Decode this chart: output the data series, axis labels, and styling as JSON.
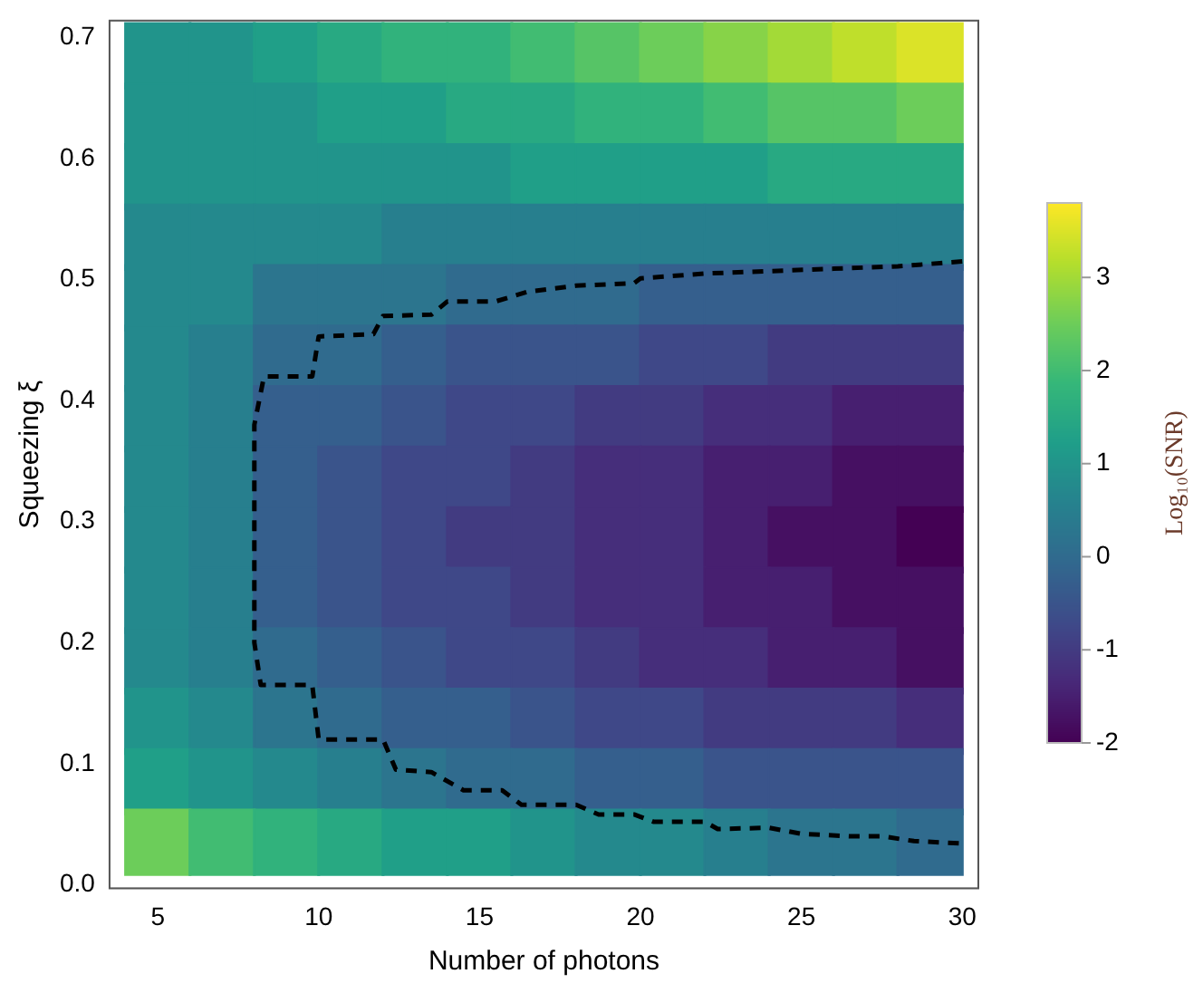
{
  "chart_data": {
    "type": "scatter",
    "xlabel": "Number of photons",
    "ylabel": "Squeezing ξ",
    "clabel": "Log₁₀(SNR)",
    "clim": [
      -2,
      3.8
    ],
    "cticks": [
      -2,
      -1,
      0,
      1,
      2,
      3
    ],
    "xlim": [
      3.5,
      30.5
    ],
    "xticks": [
      5,
      10,
      15,
      20,
      25,
      30
    ],
    "ylim": [
      -0.003,
      0.714
    ],
    "yticks": [
      {
        "value": 0,
        "label": "0.0"
      },
      {
        "value": 0.1,
        "label": "0.1"
      },
      {
        "value": 0.2,
        "label": "0.2"
      },
      {
        "value": 0.3,
        "label": "0.3"
      },
      {
        "value": 0.4,
        "label": "0.4"
      },
      {
        "value": 0.5,
        "label": "0.5"
      },
      {
        "value": 0.6,
        "label": "0.6"
      },
      {
        "value": 0.7,
        "label": "0.7"
      }
    ],
    "series": [
      {
        "marker": "square",
        "x": [
          5,
          7,
          9,
          11,
          13,
          15,
          17,
          19,
          21,
          23,
          25,
          27,
          29,
          5,
          7,
          9,
          11,
          13,
          15,
          17,
          19,
          21,
          23,
          25,
          27,
          29,
          5,
          7,
          9,
          11,
          13,
          15,
          17,
          19,
          21,
          23,
          25,
          27,
          29,
          5,
          7,
          9,
          11,
          13,
          15,
          17,
          19,
          21,
          23,
          25,
          27,
          29,
          5,
          7,
          9,
          11,
          13,
          15,
          17,
          19,
          21,
          23,
          25,
          27,
          29,
          5,
          7,
          9,
          11,
          13,
          15,
          17,
          19,
          21,
          23,
          25,
          27,
          29,
          5,
          7,
          9,
          11,
          13,
          15,
          17,
          19,
          21,
          23,
          25,
          27,
          29,
          5,
          7,
          9,
          11,
          13,
          15,
          17,
          19,
          21,
          23,
          25,
          27,
          29,
          5,
          7,
          9,
          11,
          13,
          15,
          17,
          19,
          21,
          23,
          25,
          27,
          29,
          5,
          7,
          9,
          11,
          13,
          15,
          17,
          19,
          21,
          23,
          25,
          27,
          29,
          5,
          7,
          9,
          11,
          13,
          15,
          17,
          19,
          21,
          23,
          25,
          27,
          29,
          5,
          7,
          9,
          11,
          13,
          15,
          17,
          19,
          21,
          23,
          25,
          27,
          29,
          5,
          7,
          9,
          11,
          13,
          15,
          17,
          19,
          21,
          23,
          25,
          27,
          29,
          5,
          7,
          9,
          11,
          13,
          15,
          17,
          19,
          21,
          23,
          25,
          27,
          29
        ],
        "values": [
          0.685,
          0.685,
          0.685,
          0.685,
          0.685,
          0.685,
          0.685,
          0.685,
          0.685,
          0.685,
          0.685,
          0.685,
          0.685,
          0.635,
          0.635,
          0.635,
          0.635,
          0.635,
          0.635,
          0.635,
          0.635,
          0.635,
          0.635,
          0.635,
          0.635,
          0.635,
          0.585,
          0.585,
          0.585,
          0.585,
          0.585,
          0.585,
          0.585,
          0.585,
          0.585,
          0.585,
          0.585,
          0.585,
          0.585,
          0.535,
          0.535,
          0.535,
          0.535,
          0.535,
          0.535,
          0.535,
          0.535,
          0.535,
          0.535,
          0.535,
          0.535,
          0.535,
          0.485,
          0.485,
          0.485,
          0.485,
          0.485,
          0.485,
          0.485,
          0.485,
          0.485,
          0.485,
          0.485,
          0.485,
          0.485,
          0.435,
          0.435,
          0.435,
          0.435,
          0.435,
          0.435,
          0.435,
          0.435,
          0.435,
          0.435,
          0.435,
          0.435,
          0.435,
          0.385,
          0.385,
          0.385,
          0.385,
          0.385,
          0.385,
          0.385,
          0.385,
          0.385,
          0.385,
          0.385,
          0.385,
          0.385,
          0.335,
          0.335,
          0.335,
          0.335,
          0.335,
          0.335,
          0.335,
          0.335,
          0.335,
          0.335,
          0.335,
          0.335,
          0.335,
          0.285,
          0.285,
          0.285,
          0.285,
          0.285,
          0.285,
          0.285,
          0.285,
          0.285,
          0.285,
          0.285,
          0.285,
          0.285,
          0.235,
          0.235,
          0.235,
          0.235,
          0.235,
          0.235,
          0.235,
          0.235,
          0.235,
          0.235,
          0.235,
          0.235,
          0.235,
          0.185,
          0.185,
          0.185,
          0.185,
          0.185,
          0.185,
          0.185,
          0.185,
          0.185,
          0.185,
          0.185,
          0.185,
          0.185,
          0.135,
          0.135,
          0.135,
          0.135,
          0.135,
          0.135,
          0.135,
          0.135,
          0.135,
          0.135,
          0.135,
          0.135,
          0.135,
          0.085,
          0.085,
          0.085,
          0.085,
          0.085,
          0.085,
          0.085,
          0.085,
          0.085,
          0.085,
          0.085,
          0.085,
          0.085,
          0.035,
          0.035,
          0.035,
          0.035,
          0.035,
          0.035,
          0.035,
          0.035,
          0.035,
          0.035,
          0.035,
          0.035,
          0.035
        ],
        "cvalues": [
          1.0,
          1.0,
          1.25,
          1.5,
          1.75,
          1.75,
          2.0,
          2.25,
          2.5,
          2.75,
          3.0,
          3.25,
          3.5,
          1.0,
          1.0,
          1.0,
          1.25,
          1.25,
          1.5,
          1.5,
          1.75,
          1.75,
          2.0,
          2.25,
          2.25,
          2.5,
          1.0,
          1.0,
          1.0,
          1.0,
          1.0,
          1.0,
          1.25,
          1.25,
          1.25,
          1.25,
          1.5,
          1.5,
          1.5,
          0.75,
          0.75,
          0.75,
          0.75,
          0.5,
          0.5,
          0.5,
          0.5,
          0.5,
          0.5,
          0.5,
          0.5,
          0.5,
          0.75,
          0.75,
          0.25,
          0.25,
          0.25,
          0,
          0,
          0,
          -0.25,
          -0.25,
          -0.25,
          -0.25,
          -0.25,
          0.75,
          0.5,
          0,
          0,
          -0.25,
          -0.5,
          -0.5,
          -0.5,
          -0.75,
          -0.75,
          -1.0,
          -1.0,
          -1.0,
          0.75,
          0.5,
          -0.25,
          -0.25,
          -0.5,
          -0.75,
          -0.75,
          -1.0,
          -1.0,
          -1.25,
          -1.25,
          -1.5,
          -1.5,
          0.75,
          0.5,
          -0.25,
          -0.5,
          -0.75,
          -0.75,
          -1.0,
          -1.25,
          -1.25,
          -1.5,
          -1.5,
          -1.75,
          -1.75,
          0.75,
          0.5,
          -0.25,
          -0.5,
          -0.75,
          -1.0,
          -1.0,
          -1.25,
          -1.25,
          -1.5,
          -1.75,
          -1.75,
          -2.0,
          0.75,
          0.5,
          -0.25,
          -0.5,
          -0.75,
          -0.75,
          -1.0,
          -1.25,
          -1.25,
          -1.5,
          -1.5,
          -1.75,
          -1.75,
          0.75,
          0.5,
          0,
          -0.25,
          -0.5,
          -0.75,
          -0.75,
          -1.0,
          -1.25,
          -1.25,
          -1.5,
          -1.5,
          -1.75,
          1.0,
          0.75,
          0.25,
          0,
          -0.25,
          -0.25,
          -0.5,
          -0.75,
          -0.75,
          -1.0,
          -1.0,
          -1.0,
          -1.25,
          1.25,
          1.0,
          0.75,
          0.5,
          0.25,
          0,
          0,
          -0.25,
          -0.25,
          -0.5,
          -0.5,
          -0.5,
          -0.5,
          2.5,
          2.0,
          1.75,
          1.5,
          1.25,
          1.25,
          1.0,
          0.75,
          0.75,
          0.5,
          0.25,
          0.25,
          0
        ],
        "colors": [
          "#21948b",
          "#21948b",
          "#209f88",
          "#28a982",
          "#31b27c",
          "#31b27c",
          "#41bc72",
          "#56c466",
          "#6ccd5a",
          "#87d348",
          "#a3da37",
          "#bfdf2b",
          "#dbe328",
          "#21948b",
          "#21948b",
          "#21948b",
          "#209f88",
          "#209f88",
          "#28a982",
          "#28a982",
          "#31b27c",
          "#31b27c",
          "#41bc72",
          "#56c466",
          "#56c466",
          "#6ccd5a",
          "#21948b",
          "#21948b",
          "#21948b",
          "#21948b",
          "#21948b",
          "#21948b",
          "#209f88",
          "#209f88",
          "#209f88",
          "#209f88",
          "#28a982",
          "#28a982",
          "#28a982",
          "#24898d",
          "#24898d",
          "#24898d",
          "#24898d",
          "#277f8e",
          "#277f8e",
          "#277f8e",
          "#277f8e",
          "#277f8e",
          "#277f8e",
          "#277f8e",
          "#277f8e",
          "#277f8e",
          "#24898d",
          "#24898d",
          "#2c758e",
          "#2c758e",
          "#2c758e",
          "#306b8e",
          "#306b8e",
          "#306b8e",
          "#355f8d",
          "#355f8d",
          "#355f8d",
          "#355f8d",
          "#355f8d",
          "#24898d",
          "#277f8e",
          "#306b8e",
          "#306b8e",
          "#355f8d",
          "#3a548b",
          "#3a548b",
          "#3a548b",
          "#3f4888",
          "#3f4888",
          "#423b81",
          "#423b81",
          "#423b81",
          "#24898d",
          "#277f8e",
          "#355f8d",
          "#355f8d",
          "#3a548b",
          "#3f4888",
          "#3f4888",
          "#423b81",
          "#423b81",
          "#462e7b",
          "#462e7b",
          "#471f70",
          "#471f70",
          "#24898d",
          "#277f8e",
          "#355f8d",
          "#3a548b",
          "#3f4888",
          "#3f4888",
          "#423b81",
          "#462e7b",
          "#462e7b",
          "#471f70",
          "#471f70",
          "#461062",
          "#461062",
          "#24898d",
          "#277f8e",
          "#355f8d",
          "#3a548b",
          "#3f4888",
          "#423b81",
          "#423b81",
          "#462e7b",
          "#462e7b",
          "#471f70",
          "#461062",
          "#461062",
          "#440154",
          "#24898d",
          "#277f8e",
          "#355f8d",
          "#3a548b",
          "#3f4888",
          "#3f4888",
          "#423b81",
          "#462e7b",
          "#462e7b",
          "#471f70",
          "#471f70",
          "#461062",
          "#461062",
          "#24898d",
          "#277f8e",
          "#306b8e",
          "#355f8d",
          "#3a548b",
          "#3f4888",
          "#3f4888",
          "#423b81",
          "#462e7b",
          "#462e7b",
          "#471f70",
          "#471f70",
          "#461062",
          "#21948b",
          "#24898d",
          "#2c758e",
          "#306b8e",
          "#355f8d",
          "#355f8d",
          "#3a548b",
          "#3f4888",
          "#3f4888",
          "#423b81",
          "#423b81",
          "#423b81",
          "#462e7b",
          "#209f88",
          "#21948b",
          "#24898d",
          "#277f8e",
          "#2c758e",
          "#306b8e",
          "#306b8e",
          "#355f8d",
          "#355f8d",
          "#3a548b",
          "#3a548b",
          "#3a548b",
          "#3a548b",
          "#6ccd5a",
          "#41bc72",
          "#31b27c",
          "#28a982",
          "#209f88",
          "#209f88",
          "#21948b",
          "#24898d",
          "#24898d",
          "#277f8e",
          "#2c758e",
          "#2c758e",
          "#306b8e"
        ]
      },
      {
        "type": "line",
        "color": "#000000",
        "line_style": "dashed",
        "x": [
          30,
          28,
          26,
          24,
          22,
          20,
          19.8,
          18,
          16.5,
          15.5,
          14,
          13.5,
          12,
          11.7,
          10,
          9.8,
          8.3,
          8.0,
          8.0,
          8.2,
          9.8,
          10,
          12,
          12.4,
          13.5,
          14.5,
          15.7,
          16.3,
          18,
          18.7,
          19.8,
          20.4,
          22,
          22.4,
          24,
          25,
          26.5,
          27.5,
          28.5,
          30
        ],
        "values": [
          0.515,
          0.511,
          0.509,
          0.507,
          0.505,
          0.501,
          0.497,
          0.495,
          0.49,
          0.482,
          0.482,
          0.471,
          0.47,
          0.455,
          0.453,
          0.42,
          0.42,
          0.38,
          0.2,
          0.165,
          0.165,
          0.12,
          0.12,
          0.095,
          0.093,
          0.078,
          0.078,
          0.066,
          0.066,
          0.058,
          0.058,
          0.052,
          0.052,
          0.046,
          0.047,
          0.042,
          0.04,
          0.04,
          0.036,
          0.034
        ]
      }
    ]
  }
}
